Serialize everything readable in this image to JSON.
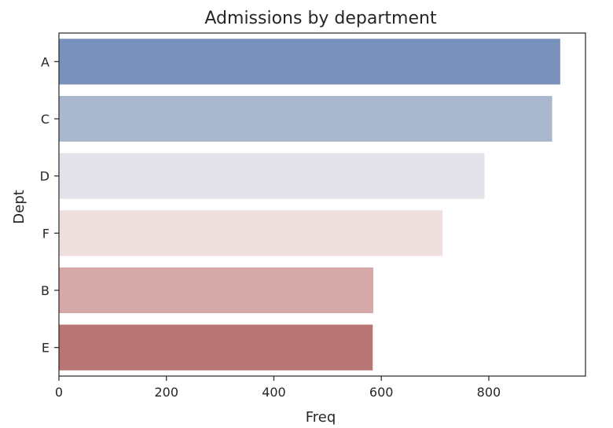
{
  "chart_data": {
    "type": "bar",
    "orientation": "horizontal",
    "title": "Admissions by department",
    "xlabel": "Freq",
    "ylabel": "Dept",
    "categories": [
      "A",
      "C",
      "D",
      "F",
      "B",
      "E"
    ],
    "values": [
      933,
      918,
      792,
      714,
      585,
      584
    ],
    "xlim": [
      0,
      980
    ],
    "xticks": [
      0,
      200,
      400,
      600,
      800
    ],
    "colors": [
      "#7892bb",
      "#aab8cd",
      "#e4e3ea",
      "#efdfde",
      "#d4a9a8",
      "#b87574"
    ],
    "grid": false
  }
}
